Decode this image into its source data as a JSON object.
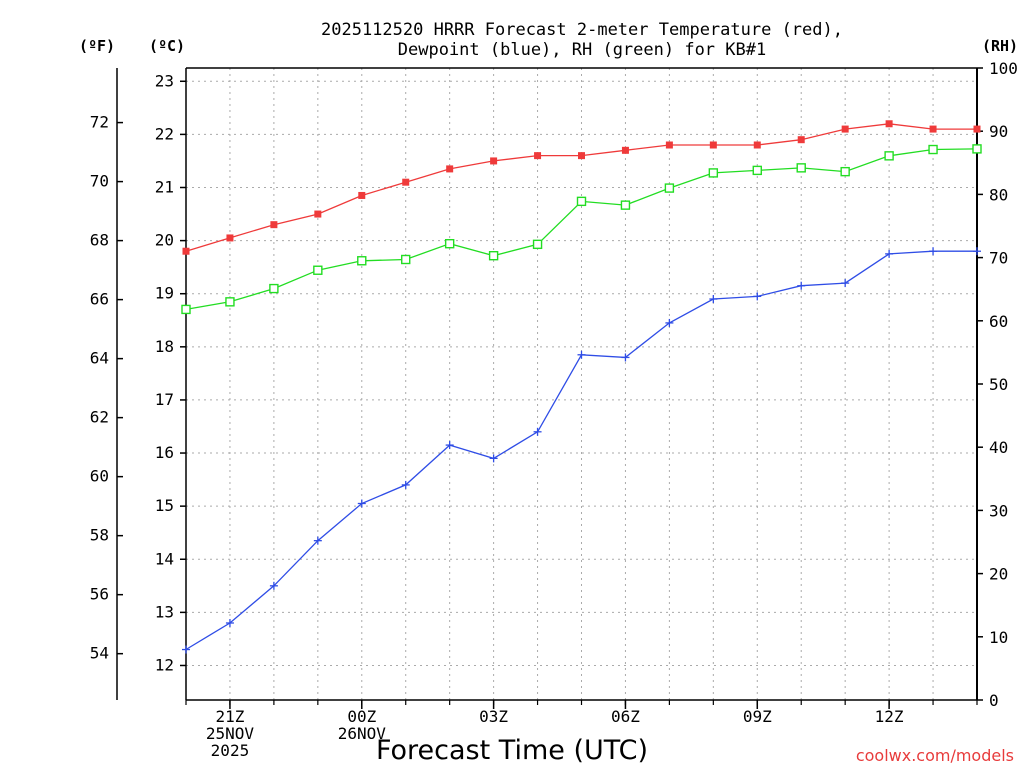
{
  "chart_data": {
    "type": "line",
    "title_line1": "2025112520 HRRR Forecast 2-meter Temperature (red),",
    "title_line2": "Dewpoint (blue), RH (green) for KB#1",
    "units": {
      "fahrenheit": "(ºF)",
      "celsius": "(ºC)",
      "rh": "(RH)"
    },
    "xlabel": "Forecast Time (UTC)",
    "credit": "coolwx.com/models",
    "x_hours": [
      0,
      1,
      2,
      3,
      4,
      5,
      6,
      7,
      8,
      9,
      10,
      11,
      12,
      13,
      14,
      15,
      16,
      17,
      18
    ],
    "x_ticks": [
      {
        "hour": 1,
        "lines": [
          "21Z",
          "25NOV",
          "2025"
        ]
      },
      {
        "hour": 4,
        "lines": [
          "00Z",
          "26NOV"
        ]
      },
      {
        "hour": 7,
        "lines": [
          "03Z"
        ]
      },
      {
        "hour": 10,
        "lines": [
          "06Z"
        ]
      },
      {
        "hour": 13,
        "lines": [
          "09Z"
        ]
      },
      {
        "hour": 16,
        "lines": [
          "12Z"
        ]
      }
    ],
    "celsius_axis": {
      "min": 11.35,
      "max": 23.25,
      "ticks": [
        12,
        13,
        14,
        15,
        16,
        17,
        18,
        19,
        20,
        21,
        22,
        23
      ]
    },
    "fahrenheit_ticks": [
      54,
      56,
      58,
      60,
      62,
      64,
      66,
      68,
      70,
      72
    ],
    "rh_axis": {
      "min": 0,
      "max": 100,
      "ticks": [
        0,
        10,
        20,
        30,
        40,
        50,
        60,
        70,
        80,
        90,
        100
      ]
    },
    "series": [
      {
        "name": "2-meter Temperature",
        "color": "#ef3a3a",
        "marker": "filled-square",
        "axis": "celsius",
        "values": [
          19.8,
          20.05,
          20.3,
          20.5,
          20.85,
          21.1,
          21.35,
          21.5,
          21.6,
          21.6,
          21.7,
          21.8,
          21.8,
          21.8,
          21.9,
          22.1,
          22.2,
          22.1,
          22.1
        ]
      },
      {
        "name": "Dewpoint",
        "color": "#2f4de6",
        "marker": "plus",
        "axis": "celsius",
        "values": [
          12.3,
          12.8,
          13.5,
          14.35,
          15.05,
          15.4,
          16.15,
          15.9,
          16.4,
          17.85,
          17.8,
          18.45,
          18.9,
          18.95,
          19.15,
          19.2,
          19.75,
          19.8,
          19.8
        ]
      },
      {
        "name": "RH",
        "color": "#22dd22",
        "marker": "open-square",
        "axis": "rh",
        "values": [
          61.8,
          63.0,
          65.1,
          68.0,
          69.5,
          69.7,
          72.2,
          70.3,
          72.1,
          78.9,
          78.3,
          81.0,
          83.4,
          83.8,
          84.2,
          83.6,
          86.1,
          87.1,
          87.2
        ]
      }
    ]
  }
}
